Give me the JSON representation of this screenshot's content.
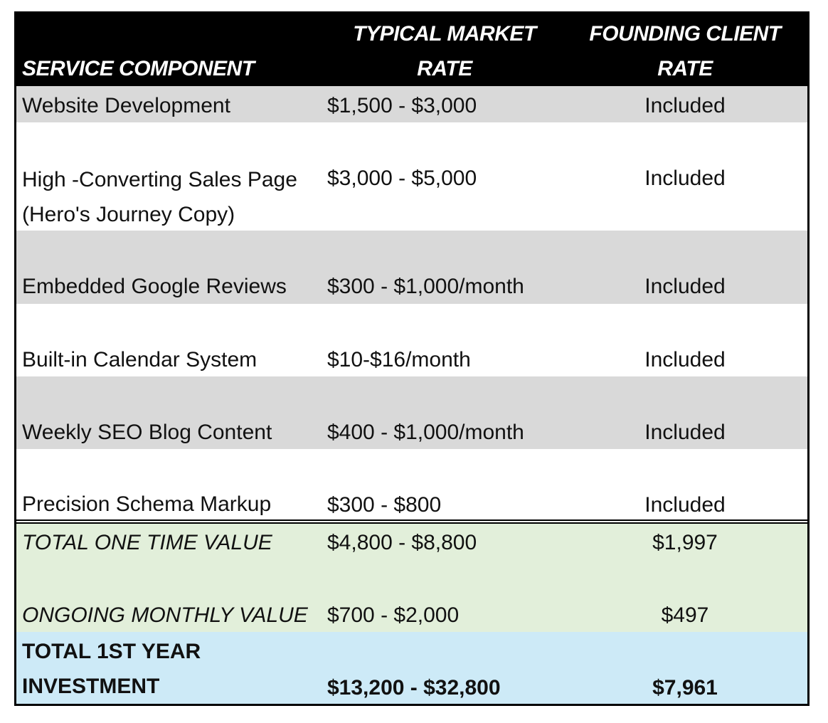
{
  "table": {
    "headers": {
      "component": "SERVICE COMPONENT",
      "market_rate_line1": "TYPICAL MARKET",
      "market_rate_line2": "RATE",
      "founding_rate_line1": "FOUNDING CLIENT",
      "founding_rate_line2": "RATE"
    },
    "rows": [
      {
        "component": "Website Development",
        "component_line2": "",
        "market_rate": "$1,500 - $3,000",
        "founding_rate": "Included"
      },
      {
        "component": "High -Converting Sales Page",
        "component_line2": "(Hero's Journey Copy)",
        "market_rate": "$3,000 - $5,000",
        "founding_rate": "Included"
      },
      {
        "component": "Embedded Google Reviews",
        "component_line2": "",
        "market_rate": "$300 - $1,000/month",
        "founding_rate": "Included"
      },
      {
        "component": "Built-in Calendar System",
        "component_line2": "",
        "market_rate": "$10-$16/month",
        "founding_rate": "Included"
      },
      {
        "component": "Weekly SEO Blog Content",
        "component_line2": "",
        "market_rate": "$400 - $1,000/month",
        "founding_rate": "Included"
      },
      {
        "component": "Precision Schema Markup",
        "component_line2": "",
        "market_rate": "$300 - $800",
        "founding_rate": "Included"
      }
    ],
    "totals": [
      {
        "component": "TOTAL ONE TIME VALUE",
        "market_rate": "$4,800 - $8,800",
        "founding_rate": "$1,997"
      },
      {
        "component": "ONGOING MONTHLY VALUE",
        "market_rate": "$700 - $2,000",
        "founding_rate": "$497"
      }
    ],
    "investment": {
      "component_line1": "TOTAL 1ST YEAR",
      "component_line2": "INVESTMENT",
      "market_rate": "$13,200 - $32,800",
      "founding_rate": "$7,961"
    }
  },
  "colors": {
    "header_bg": "#000000",
    "gray_row": "#d9d9d9",
    "totals_bg": "#e2efda",
    "investment_bg": "#cdeaf7"
  }
}
